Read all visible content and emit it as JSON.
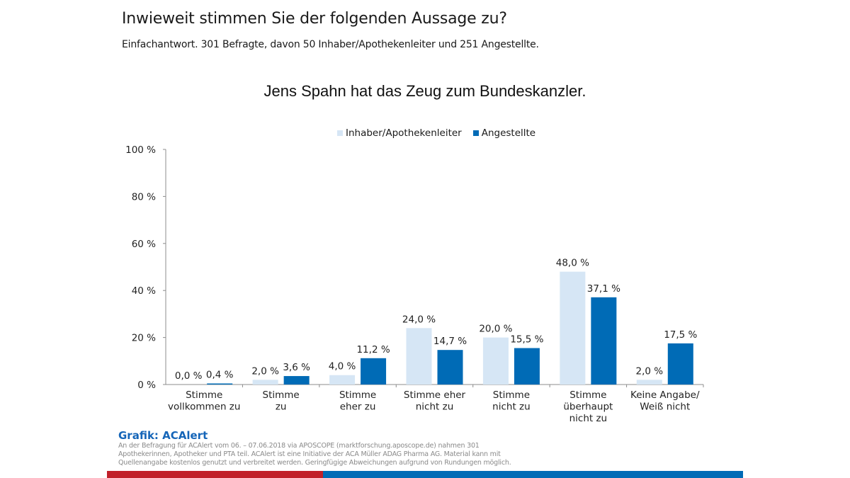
{
  "header": {
    "title": "Inwieweit stimmen Sie der folgenden Aussage zu?",
    "subtitle": "Einfachantwort. 301 Befragte, davon 50 Inhaber/Apothekenleiter und 251 Angestellte."
  },
  "footer": {
    "title": "Grafik: ACAlert",
    "text": "An der Befragung für ACAlert vom 06. – 07.06.2018 via APOSCOPE (marktforschung.aposcope.de) nahmen 301 Apothekerinnen, Apotheker und PTA teil. ACAlert ist eine Initiative der ACA Müller ADAG Pharma AG. Material kann mit Quellenangabe kostenlos genutzt und verbreitet werden. Geringfügige Abweichungen aufgrund von Rundungen möglich.",
    "brand_colors": [
      "#c1202a",
      "#006bb6"
    ]
  },
  "chart_data": {
    "type": "bar",
    "title": "Jens Spahn hat das Zeug zum Bundeskanzler.",
    "xlabel": "",
    "ylabel": "",
    "ylim": [
      0,
      100
    ],
    "yticks": [
      0,
      20,
      40,
      60,
      80,
      100
    ],
    "ytick_labels": [
      "0 %",
      "20 %",
      "40 %",
      "60 %",
      "80 %",
      "100 %"
    ],
    "grid": false,
    "legend_position": "top-center",
    "categories": [
      [
        "Stimme",
        "vollkommen zu"
      ],
      [
        "Stimme",
        "zu"
      ],
      [
        "Stimme",
        "eher zu"
      ],
      [
        "Stimme eher",
        "nicht zu"
      ],
      [
        "Stimme",
        "nicht zu"
      ],
      [
        "Stimme",
        "überhaupt",
        "nicht zu"
      ],
      [
        "Keine Angabe/",
        "Weiß nicht"
      ]
    ],
    "series": [
      {
        "name": "Inhaber/Apothekenleiter",
        "color": "#d6e6f5",
        "values": [
          0.0,
          2.0,
          4.0,
          24.0,
          20.0,
          48.0,
          2.0
        ],
        "labels": [
          "0,0 %",
          "2,0 %",
          "4,0 %",
          "24,0 %",
          "20,0 %",
          "48,0 %",
          "2,0 %"
        ]
      },
      {
        "name": "Angestellte",
        "color": "#006bb6",
        "values": [
          0.4,
          3.6,
          11.2,
          14.7,
          15.5,
          37.1,
          17.5
        ],
        "labels": [
          "0,4 %",
          "3,6 %",
          "11,2 %",
          "14,7 %",
          "15,5 %",
          "37,1 %",
          "17,5 %"
        ]
      }
    ]
  }
}
